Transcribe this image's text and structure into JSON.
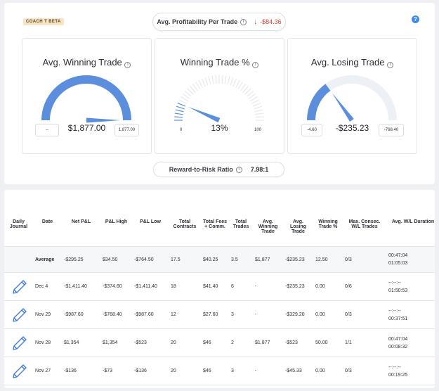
{
  "badge": "COACH T BETA",
  "avg_profitability": {
    "label": "Avg. Profitability Per Trade",
    "value": "-$84.36"
  },
  "cards": [
    {
      "title": "Avg. Winning Trade",
      "value": "$1,877.00",
      "left_value": "--",
      "right_value": "1,877.00",
      "fill": 1.0
    },
    {
      "title": "Winning Trade %",
      "value": "13%",
      "left_value": "0",
      "right_value": "100",
      "fill": 0.13
    },
    {
      "title": "Avg. Losing Trade",
      "value": "-$235.23",
      "left_value": "-4.60",
      "right_value": "-768.40",
      "fill": 0.3
    }
  ],
  "reward_risk": {
    "label": "Reward-to-Risk Ratio",
    "value": "7.98:1"
  },
  "table": {
    "headers": [
      "Daily Journal",
      "Date",
      "Net P&L",
      "P&L High",
      "P&L Low",
      "Total Contracts",
      "Total Fees + Comm.",
      "Total Trades",
      "Avg. Winning Trade",
      "Avg. Losing Trade",
      "Winning Trade %",
      "Max. Consec. W/L Trades",
      "Avg. W/L Duration"
    ],
    "average": {
      "label": "Average",
      "net": "-$295.25",
      "high": "$34.50",
      "low": "-$764.50",
      "contracts": "17.5",
      "fees": "$40.25",
      "trades": "3.5",
      "avg_win": "$1,877",
      "avg_loss": "-$235.23",
      "win_pct": "12.50",
      "consec": "0/3",
      "dur1": "00:47:04",
      "dur2": "01:05:03"
    },
    "rows": [
      {
        "date": "Dec 4",
        "net": "-$1,411.40",
        "high": "-$374.60",
        "low": "-$1,411.40",
        "contracts": "18",
        "fees": "$41.40",
        "trades": "6",
        "avg_win": "-",
        "avg_loss": "-$235.23",
        "win_pct": "0.00",
        "consec": "0/6",
        "dur1": "--:--:--",
        "dur2": "01:50:53"
      },
      {
        "date": "Nov 29",
        "net": "-$987.60",
        "high": "-$768.40",
        "low": "-$987.60",
        "contracts": "12",
        "fees": "$27.60",
        "trades": "3",
        "avg_win": "-",
        "avg_loss": "-$329.20",
        "win_pct": "0.00",
        "consec": "0/3",
        "dur1": "--:--:--",
        "dur2": "00:37:51"
      },
      {
        "date": "Nov 28",
        "net": "$1,354",
        "high": "$1,354",
        "low": "-$523",
        "contracts": "20",
        "fees": "$46",
        "trades": "2",
        "avg_win": "$1,877",
        "avg_loss": "-$523",
        "win_pct": "50.00",
        "consec": "1/1",
        "dur1": "00:47:04",
        "dur2": "00:08:32"
      },
      {
        "date": "Nov 27",
        "net": "-$136",
        "high": "-$73",
        "low": "-$136",
        "contracts": "20",
        "fees": "$46",
        "trades": "3",
        "avg_win": "-",
        "avg_loss": "-$45.33",
        "win_pct": "0.00",
        "consec": "0/3",
        "dur1": "--:--:--",
        "dur2": "00:19:25"
      }
    ]
  },
  "colors": {
    "accent": "#5b8fdd",
    "negative": "#d9423c",
    "track": "#edf0f4"
  }
}
